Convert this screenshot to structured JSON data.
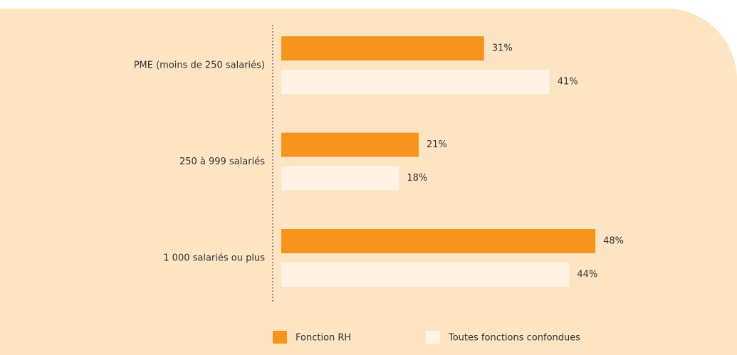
{
  "chart_data": {
    "type": "barh",
    "categories": [
      "PME (moins de 250 salariés)",
      "250 à 999 salariés",
      "1 000 salariés ou plus"
    ],
    "series": [
      {
        "name": "Fonction RH",
        "color": "#f7941d",
        "values": [
          31,
          21,
          48
        ],
        "value_labels": [
          "31%",
          "21%",
          "48%"
        ]
      },
      {
        "name": "Toutes fonctions confondues",
        "color": "#fef3e5",
        "values": [
          41,
          18,
          44
        ],
        "value_labels": [
          "41%",
          "18%",
          "44%"
        ]
      }
    ],
    "legend": "bottom"
  }
}
